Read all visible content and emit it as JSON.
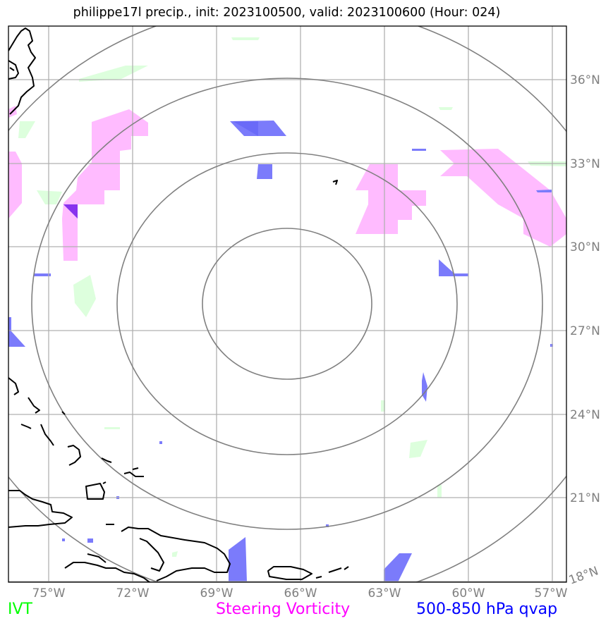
{
  "title": "philippe17l precip., init: 2023100500, valid: 2023100600 (Hour: 024)",
  "longitude_labels": [
    "75°W",
    "72°W",
    "69°W",
    "66°W",
    "63°W",
    "60°W",
    "57°W"
  ],
  "latitude_labels": [
    "36°N",
    "33°N",
    "30°N",
    "27°N",
    "24°N",
    "21°N",
    "18°N"
  ],
  "legend": {
    "ivt": {
      "label": "IVT",
      "color": "#00ff00"
    },
    "vorticity": {
      "label": "Steering Vorticity",
      "color": "#ff00ff"
    },
    "qvap": {
      "label": "500-850 hPa qvap",
      "color": "#0000ff"
    }
  },
  "colors": {
    "ivt_fill": "#ddffdd",
    "vorticity_fill": "#ffbbff",
    "qvap_fill": "#7b7bfb",
    "range_rings": "#808080",
    "gridlines": "#b0b0b0",
    "coastline": "#000000"
  }
}
